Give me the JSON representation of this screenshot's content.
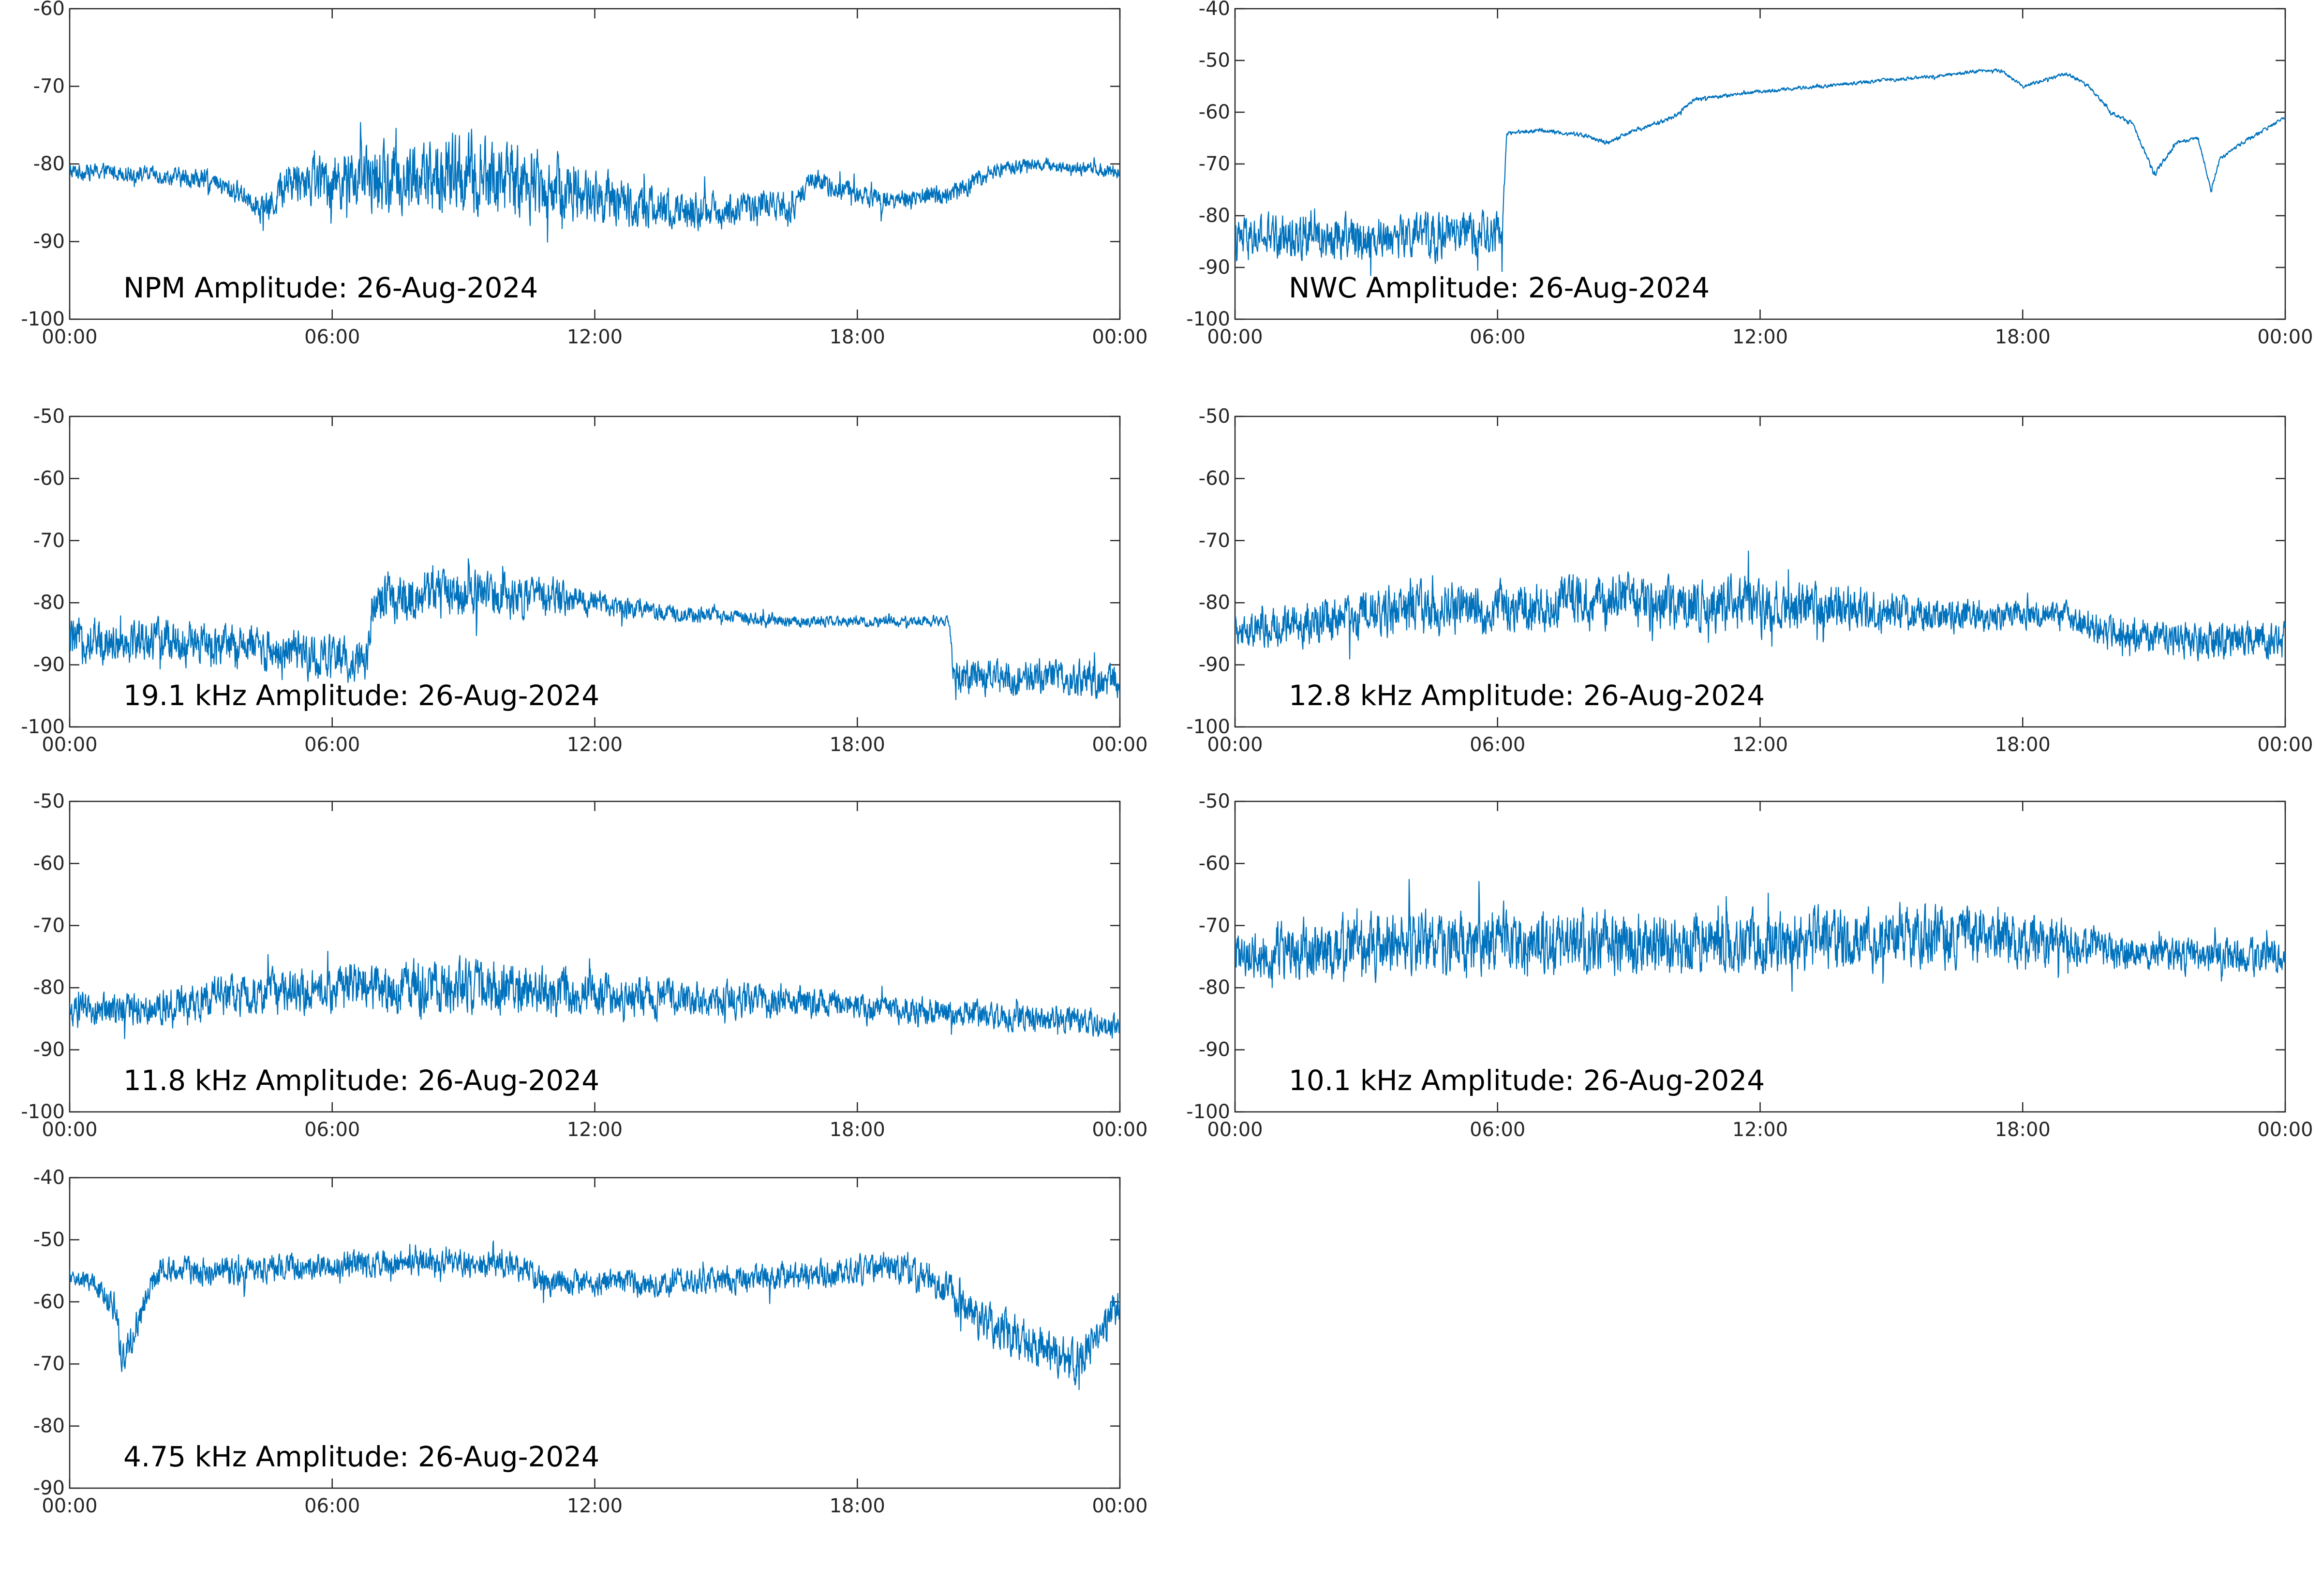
{
  "figure": {
    "line_color": "#0072BD",
    "axis_color": "#262626"
  },
  "chart_data": [
    {
      "type": "line",
      "title": "NPM Amplitude: 26-Aug-2024",
      "x_tick_labels": [
        "00:00",
        "06:00",
        "12:00",
        "18:00",
        "00:00"
      ],
      "x_ticks_hours": [
        0,
        6,
        12,
        18,
        24
      ],
      "ylim": [
        -100,
        -60
      ],
      "y_ticks": [
        -100,
        -90,
        -80,
        -70,
        -60
      ],
      "series": [
        {
          "x_hours": [
            0,
            1,
            2,
            3,
            4,
            4.5,
            5,
            6,
            7,
            8,
            9,
            10,
            11,
            12,
            13,
            14,
            15,
            16,
            16.5,
            17,
            18,
            19,
            20,
            20.5,
            21,
            22,
            23,
            24
          ],
          "y_center": [
            -81,
            -81,
            -81.5,
            -82,
            -84,
            -86,
            -82,
            -82,
            -82,
            -82,
            -81.5,
            -82,
            -83,
            -84,
            -85.5,
            -86,
            -86,
            -85,
            -86,
            -82,
            -84,
            -84.5,
            -84,
            -83,
            -81,
            -80,
            -80.5,
            -81
          ],
          "y_spread": [
            1.5,
            1.5,
            1.5,
            2,
            2,
            3,
            4,
            5,
            6,
            7,
            8,
            7,
            6,
            5,
            4,
            3.5,
            3,
            2.5,
            2.5,
            2,
            2,
            2,
            2,
            2,
            1.5,
            1.2,
            1.2,
            1.2
          ]
        }
      ]
    },
    {
      "type": "line",
      "title": "NWC Amplitude: 26-Aug-2024",
      "x_tick_labels": [
        "00:00",
        "06:00",
        "12:00",
        "18:00",
        "00:00"
      ],
      "x_ticks_hours": [
        0,
        6,
        12,
        18,
        24
      ],
      "ylim": [
        -100,
        -40
      ],
      "y_ticks": [
        -100,
        -90,
        -80,
        -70,
        -60,
        -50,
        -40
      ],
      "series": [
        {
          "x_hours": [
            0,
            1,
            2,
            3,
            4,
            5,
            6.1,
            6.2,
            7,
            8,
            8.5,
            9,
            10,
            10.5,
            11,
            12,
            14,
            16,
            17,
            17.5,
            18,
            19,
            19.5,
            20,
            20.5,
            21,
            21.5,
            22,
            22.3,
            22.5,
            23,
            24
          ],
          "y_center": [
            -85,
            -84,
            -84,
            -84,
            -84,
            -84,
            -84,
            -64,
            -63.5,
            -64.5,
            -66,
            -64,
            -61,
            -57.5,
            -57,
            -56,
            -54.5,
            -53,
            -52,
            -52,
            -55,
            -52.5,
            -55,
            -60,
            -62,
            -72,
            -66,
            -65,
            -75,
            -69,
            -66,
            -61
          ],
          "y_spread": [
            6,
            6,
            6,
            6,
            6,
            6,
            6,
            0.6,
            0.6,
            0.6,
            0.6,
            0.6,
            0.6,
            0.5,
            0.5,
            0.5,
            0.5,
            0.5,
            0.5,
            0.5,
            0.5,
            0.5,
            0.5,
            0.5,
            0.5,
            0.8,
            0.5,
            0.5,
            0.8,
            0.5,
            0.5,
            0.5
          ]
        }
      ]
    },
    {
      "type": "line",
      "title": "19.1 kHz Amplitude: 26-Aug-2024",
      "x_tick_labels": [
        "00:00",
        "06:00",
        "12:00",
        "18:00",
        "00:00"
      ],
      "x_ticks_hours": [
        0,
        6,
        12,
        18,
        24
      ],
      "ylim": [
        -100,
        -50
      ],
      "y_ticks": [
        -100,
        -90,
        -80,
        -70,
        -60,
        -50
      ],
      "series": [
        {
          "x_hours": [
            0,
            1,
            2,
            3,
            4,
            5,
            6,
            6.8,
            6.9,
            8,
            9,
            10,
            11,
            12,
            13,
            14,
            15,
            16,
            17,
            18,
            19,
            20.1,
            20.2,
            21,
            22,
            23,
            24
          ],
          "y_center": [
            -86,
            -86,
            -86,
            -87,
            -87,
            -88,
            -89,
            -89,
            -80,
            -79,
            -78,
            -79,
            -79,
            -80,
            -81,
            -82,
            -82,
            -83,
            -83,
            -83,
            -83,
            -83,
            -92,
            -92,
            -92,
            -92,
            -93
          ],
          "y_spread": [
            5,
            5,
            5,
            5,
            5,
            5,
            5,
            5,
            5,
            6,
            6,
            5,
            4,
            3,
            2,
            1.8,
            1.5,
            1.5,
            1.2,
            1.2,
            1.2,
            1.2,
            4,
            4,
            4,
            4,
            4
          ]
        }
      ]
    },
    {
      "type": "line",
      "title": "12.8 kHz Amplitude: 26-Aug-2024",
      "x_tick_labels": [
        "00:00",
        "06:00",
        "12:00",
        "18:00",
        "00:00"
      ],
      "x_ticks_hours": [
        0,
        6,
        12,
        18,
        24
      ],
      "ylim": [
        -100,
        -50
      ],
      "y_ticks": [
        -100,
        -90,
        -80,
        -70,
        -60,
        -50
      ],
      "series": [
        {
          "x_hours": [
            0,
            2,
            4,
            6,
            8,
            10,
            12,
            14,
            16,
            18,
            19,
            20,
            22,
            24
          ],
          "y_center": [
            -85,
            -83,
            -81,
            -81,
            -80,
            -80,
            -81,
            -81,
            -82,
            -82,
            -82,
            -85,
            -86,
            -86
          ],
          "y_spread": [
            4,
            5,
            6,
            6,
            6,
            6,
            6,
            5,
            4,
            3,
            3,
            4,
            4,
            4
          ]
        }
      ]
    },
    {
      "type": "line",
      "title": "11.8 kHz Amplitude: 26-Aug-2024",
      "x_tick_labels": [
        "00:00",
        "06:00",
        "12:00",
        "18:00",
        "00:00"
      ],
      "x_ticks_hours": [
        0,
        6,
        12,
        18,
        24
      ],
      "ylim": [
        -100,
        -50
      ],
      "y_ticks": [
        -100,
        -90,
        -80,
        -70,
        -60,
        -50
      ],
      "series": [
        {
          "x_hours": [
            0,
            2,
            4,
            6,
            8,
            10,
            12,
            14,
            16,
            18,
            20,
            22,
            24
          ],
          "y_center": [
            -84,
            -83,
            -81,
            -80,
            -80,
            -80,
            -81,
            -82,
            -82,
            -83,
            -84,
            -85,
            -86
          ],
          "y_spread": [
            4,
            4,
            5,
            5,
            6,
            6,
            5,
            4,
            4,
            3,
            3,
            3,
            3
          ]
        }
      ]
    },
    {
      "type": "line",
      "title": "10.1 kHz Amplitude: 26-Aug-2024",
      "x_tick_labels": [
        "00:00",
        "06:00",
        "12:00",
        "18:00",
        "00:00"
      ],
      "x_ticks_hours": [
        0,
        6,
        12,
        18,
        24
      ],
      "ylim": [
        -100,
        -50
      ],
      "y_ticks": [
        -100,
        -90,
        -80,
        -70,
        -60,
        -50
      ],
      "series": [
        {
          "x_hours": [
            0,
            1,
            2,
            4,
            6,
            8,
            10,
            12,
            14,
            16,
            18,
            19,
            20,
            22,
            24
          ],
          "y_center": [
            -75,
            -74,
            -74,
            -73,
            -73,
            -73,
            -73,
            -73,
            -72,
            -72,
            -72,
            -73,
            -74,
            -75,
            -75
          ],
          "y_spread": [
            5,
            6,
            7,
            7,
            7,
            7,
            7,
            7,
            7,
            7,
            6,
            5,
            4,
            4,
            4
          ]
        }
      ]
    },
    {
      "type": "line",
      "title": "4.75 kHz Amplitude: 26-Aug-2024",
      "x_tick_labels": [
        "00:00",
        "06:00",
        "12:00",
        "18:00",
        "00:00"
      ],
      "x_ticks_hours": [
        0,
        6,
        12,
        18,
        24
      ],
      "ylim": [
        -90,
        -40
      ],
      "y_ticks": [
        -90,
        -80,
        -70,
        -60,
        -50,
        -40
      ],
      "series": [
        {
          "x_hours": [
            0,
            0.5,
            1,
            1.2,
            2,
            4,
            6,
            8,
            10,
            11,
            12,
            14,
            16,
            18,
            19,
            20,
            21,
            22,
            23,
            24
          ],
          "y_center": [
            -56,
            -57,
            -60,
            -70,
            -55,
            -55,
            -54,
            -54,
            -54,
            -57,
            -57,
            -57,
            -56,
            -55,
            -54,
            -58,
            -64,
            -67,
            -70,
            -60
          ],
          "y_spread": [
            2,
            2,
            4,
            4,
            3,
            3,
            3,
            3,
            3,
            3,
            3,
            3,
            3,
            3,
            4,
            4,
            5,
            5,
            5,
            4
          ]
        }
      ]
    }
  ]
}
